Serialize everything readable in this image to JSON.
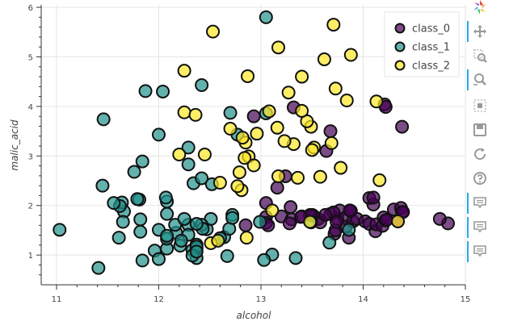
{
  "chart_data": {
    "type": "scatter",
    "title": "",
    "xlabel": "alcohol",
    "ylabel": "malic_acid",
    "xlim": [
      10.85,
      15.0
    ],
    "ylim": [
      0.4,
      6.05
    ],
    "xticks": [
      11,
      12,
      13,
      14,
      15
    ],
    "yticks": [
      1,
      2,
      3,
      4,
      5,
      6
    ],
    "grid": true,
    "legend_position": "top-right",
    "series": [
      {
        "name": "class_0",
        "color": "#440154",
        "points": [
          [
            13.05,
            2.05
          ],
          [
            13.16,
            2.36
          ],
          [
            13.24,
            2.59
          ],
          [
            13.32,
            3.98
          ],
          [
            13.05,
            1.77
          ],
          [
            13.2,
            1.78
          ],
          [
            13.4,
            1.78
          ],
          [
            13.5,
            1.81
          ],
          [
            13.56,
            1.73
          ],
          [
            13.64,
            3.1
          ],
          [
            13.68,
            1.83
          ],
          [
            13.72,
            1.43
          ],
          [
            13.73,
            1.5
          ],
          [
            13.75,
            1.73
          ],
          [
            13.77,
            1.9
          ],
          [
            13.82,
            1.75
          ],
          [
            13.83,
            1.57
          ],
          [
            13.86,
            1.35
          ],
          [
            13.87,
            1.9
          ],
          [
            13.88,
            1.89
          ],
          [
            13.9,
            1.68
          ],
          [
            13.94,
            1.73
          ],
          [
            14.02,
            1.68
          ],
          [
            14.06,
            1.63
          ],
          [
            14.06,
            2.15
          ],
          [
            14.1,
            2.02
          ],
          [
            14.1,
            2.16
          ],
          [
            14.12,
            1.48
          ],
          [
            14.13,
            1.62
          ],
          [
            14.19,
            1.59
          ],
          [
            14.2,
            1.76
          ],
          [
            14.21,
            4.04
          ],
          [
            14.22,
            3.99
          ],
          [
            14.22,
            1.7
          ],
          [
            14.23,
            1.71
          ],
          [
            14.3,
            1.92
          ],
          [
            14.37,
            1.95
          ],
          [
            14.38,
            1.87
          ],
          [
            14.39,
            1.87
          ],
          [
            14.83,
            1.64
          ],
          [
            14.75,
            1.73
          ],
          [
            14.38,
            3.59
          ],
          [
            13.71,
            1.86
          ],
          [
            13.74,
            1.67
          ],
          [
            13.29,
            1.97
          ],
          [
            13.05,
            1.65
          ],
          [
            13.07,
            1.6
          ],
          [
            13.3,
            1.72
          ],
          [
            13.51,
            1.8
          ],
          [
            13.58,
            1.66
          ],
          [
            13.63,
            1.81
          ],
          [
            13.68,
            3.5
          ],
          [
            13.28,
            1.64
          ],
          [
            12.93,
            3.8
          ],
          [
            12.85,
            1.6
          ],
          [
            13.48,
            1.81
          ],
          [
            14.34,
            1.68
          ],
          [
            13.87,
            1.9
          ],
          [
            13.39,
            1.77
          ]
        ]
      },
      {
        "name": "class_1",
        "color": "#21918c",
        "points": [
          [
            12.37,
            0.94
          ],
          [
            12.33,
            1.1
          ],
          [
            12.64,
            1.36
          ],
          [
            13.67,
            1.25
          ],
          [
            12.37,
            1.13
          ],
          [
            12.17,
            1.45
          ],
          [
            12.37,
            1.21
          ],
          [
            13.11,
            1.01
          ],
          [
            12.37,
            1.17
          ],
          [
            13.34,
            0.94
          ],
          [
            12.21,
            1.19
          ],
          [
            12.29,
            1.61
          ],
          [
            13.86,
            1.51
          ],
          [
            13.49,
            1.66
          ],
          [
            12.99,
            1.67
          ],
          [
            11.96,
            1.09
          ],
          [
            11.66,
            1.88
          ],
          [
            13.03,
            0.9
          ],
          [
            11.84,
            2.89
          ],
          [
            12.33,
            0.99
          ],
          [
            12.7,
            3.87
          ],
          [
            12.0,
            0.92
          ],
          [
            12.72,
            1.81
          ],
          [
            12.08,
            1.13
          ],
          [
            13.05,
            3.86
          ],
          [
            11.84,
            0.89
          ],
          [
            12.67,
            0.98
          ],
          [
            12.16,
            1.61
          ],
          [
            11.65,
            1.67
          ],
          [
            11.64,
            2.06
          ],
          [
            12.08,
            1.33
          ],
          [
            12.08,
            1.83
          ],
          [
            12.0,
            1.51
          ],
          [
            12.69,
            1.53
          ],
          [
            12.29,
            2.83
          ],
          [
            11.62,
            1.99
          ],
          [
            12.47,
            1.52
          ],
          [
            11.81,
            2.12
          ],
          [
            12.29,
            1.41
          ],
          [
            12.37,
            1.07
          ],
          [
            12.29,
            3.17
          ],
          [
            12.08,
            2.08
          ],
          [
            12.6,
            1.34
          ],
          [
            12.34,
            2.45
          ],
          [
            11.82,
            1.72
          ],
          [
            12.51,
            1.73
          ],
          [
            12.42,
            2.55
          ],
          [
            12.25,
            1.73
          ],
          [
            12.72,
            1.75
          ],
          [
            12.22,
            1.29
          ],
          [
            11.61,
            1.35
          ],
          [
            11.46,
            3.74
          ],
          [
            12.52,
            2.43
          ],
          [
            11.76,
            2.68
          ],
          [
            11.41,
            0.74
          ],
          [
            12.08,
            1.39
          ],
          [
            11.03,
            1.51
          ],
          [
            11.82,
            1.47
          ],
          [
            12.42,
            1.61
          ],
          [
            12.77,
            3.43
          ],
          [
            12.0,
            3.43
          ],
          [
            11.45,
            2.4
          ],
          [
            11.56,
            2.05
          ],
          [
            12.42,
            4.43
          ],
          [
            13.05,
            5.8
          ],
          [
            11.87,
            4.31
          ],
          [
            12.07,
            2.16
          ],
          [
            12.43,
            1.53
          ],
          [
            11.79,
            2.13
          ],
          [
            12.37,
            1.63
          ],
          [
            12.04,
            4.3
          ]
        ]
      },
      {
        "name": "class_2",
        "color": "#fde725",
        "points": [
          [
            12.86,
            1.35
          ],
          [
            12.88,
            2.99
          ],
          [
            12.81,
            2.31
          ],
          [
            12.7,
            3.55
          ],
          [
            12.51,
            1.24
          ],
          [
            12.6,
            2.46
          ],
          [
            12.25,
            4.72
          ],
          [
            12.53,
            5.51
          ],
          [
            13.49,
            3.59
          ],
          [
            12.84,
            2.96
          ],
          [
            12.93,
            2.81
          ],
          [
            13.36,
            2.56
          ],
          [
            13.52,
            3.17
          ],
          [
            13.62,
            4.95
          ],
          [
            12.25,
            3.88
          ],
          [
            13.16,
            3.57
          ],
          [
            13.88,
            5.04
          ],
          [
            12.87,
            4.61
          ],
          [
            13.32,
            3.24
          ],
          [
            13.08,
            3.9
          ],
          [
            13.5,
            3.12
          ],
          [
            12.79,
            2.67
          ],
          [
            13.11,
            1.9
          ],
          [
            13.23,
            3.3
          ],
          [
            12.58,
            1.29
          ],
          [
            13.17,
            5.19
          ],
          [
            13.84,
            4.12
          ],
          [
            12.45,
            3.03
          ],
          [
            14.34,
            1.68
          ],
          [
            13.48,
            1.67
          ],
          [
            12.36,
            3.83
          ],
          [
            13.69,
            3.26
          ],
          [
            12.85,
            3.27
          ],
          [
            12.96,
            3.45
          ],
          [
            13.78,
            2.76
          ],
          [
            13.73,
            4.36
          ],
          [
            13.45,
            3.7
          ],
          [
            12.82,
            3.37
          ],
          [
            13.58,
            2.58
          ],
          [
            13.4,
            4.6
          ],
          [
            12.2,
            3.03
          ],
          [
            12.77,
            2.39
          ],
          [
            14.16,
            2.51
          ],
          [
            13.71,
            5.65
          ],
          [
            13.4,
            3.91
          ],
          [
            13.27,
            4.28
          ],
          [
            13.17,
            2.59
          ],
          [
            14.13,
            4.1
          ]
        ]
      }
    ]
  },
  "toolbar": {
    "tools": [
      {
        "name": "bokeh-logo-icon",
        "active": false
      },
      {
        "name": "pan-icon",
        "active": true
      },
      {
        "name": "box-zoom-icon",
        "active": false
      },
      {
        "name": "wheel-zoom-icon",
        "active": true
      },
      {
        "name": "box-select-icon",
        "active": false
      },
      {
        "name": "save-icon",
        "active": false
      },
      {
        "name": "reset-icon",
        "active": false
      },
      {
        "name": "help-icon",
        "active": false
      },
      {
        "name": "hover-icon",
        "active": true
      },
      {
        "name": "hover-icon",
        "active": true
      },
      {
        "name": "hover-icon",
        "active": true
      }
    ]
  }
}
